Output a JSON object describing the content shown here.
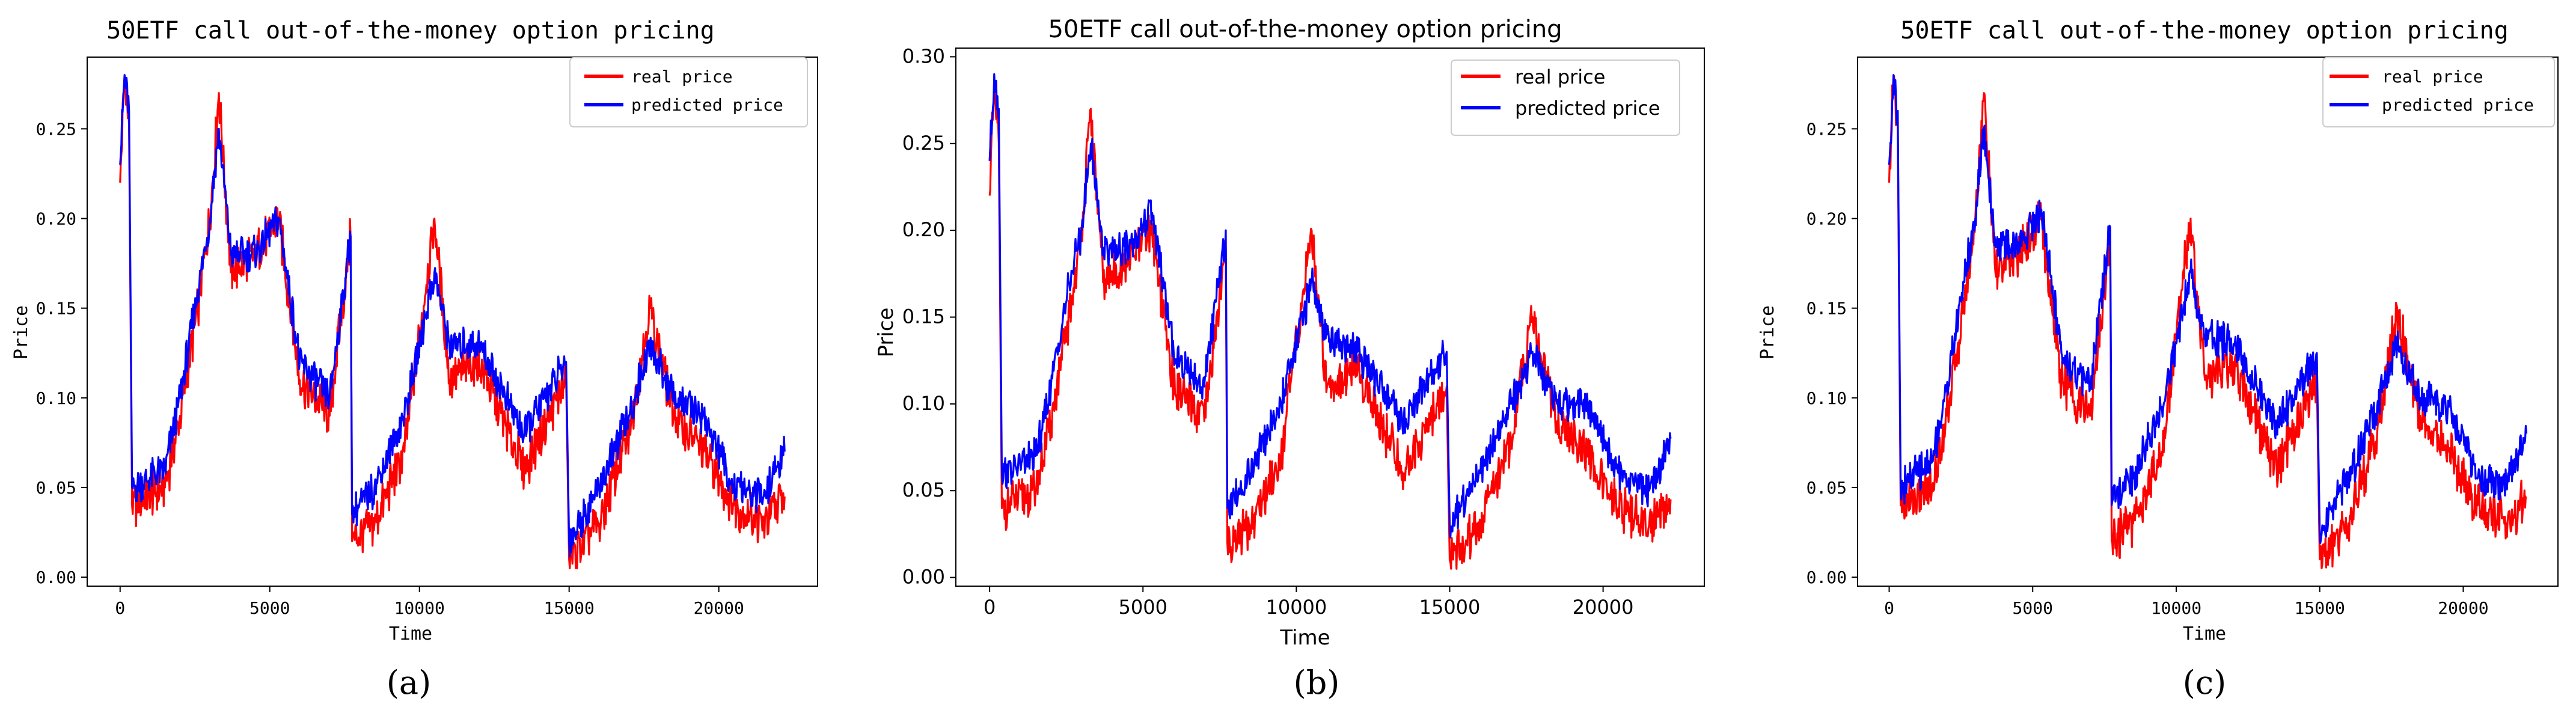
{
  "chart_data": [
    {
      "type": "line",
      "panel": "(a)",
      "title": "50ETF call out-of-the-money option pricing",
      "xlabel": "Time",
      "ylabel": "Price",
      "xlim": [
        -1100,
        23300
      ],
      "ylim": [
        -0.005,
        0.29
      ],
      "xticks": [
        0,
        5000,
        10000,
        15000,
        20000
      ],
      "yticks": [
        0.0,
        0.05,
        0.1,
        0.15,
        0.2,
        0.25
      ],
      "ytick_labels": [
        "0.00",
        "0.05",
        "0.10",
        "0.15",
        "0.20",
        "0.25"
      ],
      "legend": [
        "real price",
        "predicted price"
      ],
      "legend_position": "upper right",
      "series": [
        {
          "name": "real price",
          "color": "#ff0000",
          "points": [
            [
              0,
              0.22
            ],
            [
              150,
              0.28
            ],
            [
              300,
              0.25
            ],
            [
              400,
              0.04
            ],
            [
              1500,
              0.05
            ],
            [
              2000,
              0.09
            ],
            [
              2600,
              0.15
            ],
            [
              3000,
              0.2
            ],
            [
              3300,
              0.27
            ],
            [
              3700,
              0.17
            ],
            [
              4500,
              0.18
            ],
            [
              5300,
              0.2
            ],
            [
              6000,
              0.11
            ],
            [
              7000,
              0.09
            ],
            [
              7700,
              0.19
            ],
            [
              7750,
              0.02
            ],
            [
              8500,
              0.03
            ],
            [
              9500,
              0.07
            ],
            [
              10500,
              0.2
            ],
            [
              11000,
              0.11
            ],
            [
              12000,
              0.12
            ],
            [
              13500,
              0.06
            ],
            [
              14900,
              0.11
            ],
            [
              15000,
              0.01
            ],
            [
              16000,
              0.03
            ],
            [
              17000,
              0.08
            ],
            [
              17700,
              0.15
            ],
            [
              18500,
              0.09
            ],
            [
              19500,
              0.07
            ],
            [
              20500,
              0.04
            ],
            [
              21500,
              0.03
            ],
            [
              22200,
              0.045
            ]
          ]
        },
        {
          "name": "predicted price",
          "color": "#0000ff",
          "points": [
            [
              0,
              0.23
            ],
            [
              150,
              0.28
            ],
            [
              300,
              0.26
            ],
            [
              400,
              0.05
            ],
            [
              1500,
              0.06
            ],
            [
              2000,
              0.1
            ],
            [
              2600,
              0.16
            ],
            [
              3000,
              0.2
            ],
            [
              3300,
              0.25
            ],
            [
              3700,
              0.18
            ],
            [
              4500,
              0.18
            ],
            [
              5300,
              0.2
            ],
            [
              6000,
              0.12
            ],
            [
              7000,
              0.1
            ],
            [
              7700,
              0.19
            ],
            [
              7750,
              0.035
            ],
            [
              8500,
              0.05
            ],
            [
              9500,
              0.09
            ],
            [
              10500,
              0.17
            ],
            [
              11000,
              0.13
            ],
            [
              12000,
              0.13
            ],
            [
              13500,
              0.08
            ],
            [
              14900,
              0.12
            ],
            [
              15000,
              0.02
            ],
            [
              16000,
              0.05
            ],
            [
              17000,
              0.09
            ],
            [
              17700,
              0.13
            ],
            [
              18500,
              0.1
            ],
            [
              19500,
              0.09
            ],
            [
              20500,
              0.05
            ],
            [
              21500,
              0.045
            ],
            [
              22200,
              0.07
            ]
          ]
        }
      ]
    },
    {
      "type": "line",
      "panel": "(b)",
      "title": "50ETF call out-of-the-money option pricing",
      "xlabel": "Time",
      "ylabel": "Price",
      "xlim": [
        -1100,
        23300
      ],
      "ylim": [
        -0.005,
        0.305
      ],
      "xticks": [
        0,
        5000,
        10000,
        15000,
        20000
      ],
      "yticks": [
        0.0,
        0.05,
        0.1,
        0.15,
        0.2,
        0.25,
        0.3
      ],
      "ytick_labels": [
        "0.00",
        "0.05",
        "0.10",
        "0.15",
        "0.20",
        "0.25",
        "0.30"
      ],
      "legend": [
        "real price",
        "predicted price"
      ],
      "legend_position": "upper right",
      "series": [
        {
          "name": "real price",
          "color": "#ff0000",
          "points": [
            [
              0,
              0.22
            ],
            [
              150,
              0.28
            ],
            [
              300,
              0.25
            ],
            [
              400,
              0.04
            ],
            [
              1500,
              0.05
            ],
            [
              2000,
              0.09
            ],
            [
              2600,
              0.15
            ],
            [
              3000,
              0.2
            ],
            [
              3300,
              0.27
            ],
            [
              3700,
              0.17
            ],
            [
              4500,
              0.18
            ],
            [
              5300,
              0.2
            ],
            [
              6000,
              0.11
            ],
            [
              7000,
              0.09
            ],
            [
              7700,
              0.19
            ],
            [
              7750,
              0.02
            ],
            [
              8500,
              0.03
            ],
            [
              9500,
              0.07
            ],
            [
              10500,
              0.2
            ],
            [
              11000,
              0.11
            ],
            [
              12000,
              0.12
            ],
            [
              13500,
              0.06
            ],
            [
              14900,
              0.11
            ],
            [
              15000,
              0.01
            ],
            [
              16000,
              0.03
            ],
            [
              17000,
              0.08
            ],
            [
              17700,
              0.15
            ],
            [
              18500,
              0.09
            ],
            [
              19500,
              0.07
            ],
            [
              20500,
              0.04
            ],
            [
              21500,
              0.03
            ],
            [
              22200,
              0.045
            ]
          ]
        },
        {
          "name": "predicted price",
          "color": "#0000ff",
          "points": [
            [
              0,
              0.24
            ],
            [
              150,
              0.29
            ],
            [
              300,
              0.27
            ],
            [
              400,
              0.06
            ],
            [
              1500,
              0.07
            ],
            [
              2000,
              0.11
            ],
            [
              2600,
              0.17
            ],
            [
              3000,
              0.2
            ],
            [
              3300,
              0.25
            ],
            [
              3700,
              0.19
            ],
            [
              4500,
              0.19
            ],
            [
              5300,
              0.21
            ],
            [
              6000,
              0.13
            ],
            [
              7000,
              0.11
            ],
            [
              7700,
              0.2
            ],
            [
              7750,
              0.04
            ],
            [
              8500,
              0.06
            ],
            [
              9500,
              0.1
            ],
            [
              10500,
              0.17
            ],
            [
              11000,
              0.14
            ],
            [
              12000,
              0.13
            ],
            [
              13500,
              0.09
            ],
            [
              14900,
              0.13
            ],
            [
              15000,
              0.03
            ],
            [
              16000,
              0.06
            ],
            [
              17000,
              0.1
            ],
            [
              17700,
              0.13
            ],
            [
              18500,
              0.1
            ],
            [
              19500,
              0.1
            ],
            [
              20500,
              0.06
            ],
            [
              21500,
              0.05
            ],
            [
              22200,
              0.08
            ]
          ]
        }
      ]
    },
    {
      "type": "line",
      "panel": "(c)",
      "title": "50ETF call out-of-the-money option pricing",
      "xlabel": "Time",
      "ylabel": "Price",
      "xlim": [
        -1100,
        23300
      ],
      "ylim": [
        -0.005,
        0.29
      ],
      "xticks": [
        0,
        5000,
        10000,
        15000,
        20000
      ],
      "yticks": [
        0.0,
        0.05,
        0.1,
        0.15,
        0.2,
        0.25
      ],
      "ytick_labels": [
        "0.00",
        "0.05",
        "0.10",
        "0.15",
        "0.20",
        "0.25"
      ],
      "legend": [
        "real price",
        "predicted price"
      ],
      "legend_position": "upper right",
      "series": [
        {
          "name": "real price",
          "color": "#ff0000",
          "points": [
            [
              0,
              0.22
            ],
            [
              150,
              0.28
            ],
            [
              300,
              0.25
            ],
            [
              400,
              0.04
            ],
            [
              1500,
              0.05
            ],
            [
              2000,
              0.09
            ],
            [
              2600,
              0.15
            ],
            [
              3000,
              0.2
            ],
            [
              3300,
              0.27
            ],
            [
              3700,
              0.17
            ],
            [
              4500,
              0.18
            ],
            [
              5300,
              0.2
            ],
            [
              6000,
              0.11
            ],
            [
              7000,
              0.09
            ],
            [
              7700,
              0.19
            ],
            [
              7750,
              0.02
            ],
            [
              8500,
              0.03
            ],
            [
              9500,
              0.07
            ],
            [
              10500,
              0.2
            ],
            [
              11000,
              0.11
            ],
            [
              12000,
              0.12
            ],
            [
              13500,
              0.06
            ],
            [
              14900,
              0.11
            ],
            [
              15000,
              0.01
            ],
            [
              16000,
              0.03
            ],
            [
              17000,
              0.08
            ],
            [
              17700,
              0.15
            ],
            [
              18500,
              0.09
            ],
            [
              19500,
              0.07
            ],
            [
              20500,
              0.04
            ],
            [
              21500,
              0.03
            ],
            [
              22200,
              0.045
            ]
          ]
        },
        {
          "name": "predicted price",
          "color": "#0000ff",
          "points": [
            [
              0,
              0.23
            ],
            [
              150,
              0.28
            ],
            [
              300,
              0.26
            ],
            [
              400,
              0.05
            ],
            [
              1500,
              0.065
            ],
            [
              2000,
              0.105
            ],
            [
              2600,
              0.165
            ],
            [
              3000,
              0.2
            ],
            [
              3300,
              0.25
            ],
            [
              3700,
              0.185
            ],
            [
              4500,
              0.185
            ],
            [
              5300,
              0.205
            ],
            [
              6000,
              0.125
            ],
            [
              7000,
              0.105
            ],
            [
              7700,
              0.195
            ],
            [
              7750,
              0.04
            ],
            [
              8500,
              0.055
            ],
            [
              9500,
              0.095
            ],
            [
              10500,
              0.17
            ],
            [
              11000,
              0.135
            ],
            [
              12000,
              0.13
            ],
            [
              13500,
              0.085
            ],
            [
              14900,
              0.125
            ],
            [
              15000,
              0.025
            ],
            [
              16000,
              0.055
            ],
            [
              17000,
              0.095
            ],
            [
              17700,
              0.13
            ],
            [
              18500,
              0.1
            ],
            [
              19500,
              0.095
            ],
            [
              20500,
              0.055
            ],
            [
              21500,
              0.05
            ],
            [
              22200,
              0.08
            ]
          ]
        }
      ]
    }
  ]
}
